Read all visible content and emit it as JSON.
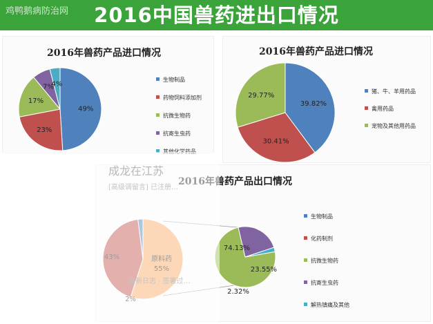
{
  "header": {
    "title": "2016中国兽药进出口情况",
    "watermark": "鸡鸭鹅病防治网"
  },
  "overlay": {
    "name": "成龙在江苏",
    "subtitle": "[高级调留言] 已注册…",
    "footer": "最新日志 · 签署过…"
  },
  "colors": {
    "blue": "#4f81bd",
    "red": "#c0504d",
    "green": "#9bbb59",
    "purple": "#8064a2",
    "teal": "#4bacc6",
    "orange": "#f9a962"
  },
  "chart_data": [
    {
      "type": "pie",
      "title": "2016年兽药产品进口情况",
      "categories": [
        "生物制品",
        "药物饲料添加剂",
        "抗微生物药",
        "抗寄生虫药",
        "其他化学药品"
      ],
      "values": [
        49,
        23,
        17,
        7,
        4
      ],
      "labels": [
        "49%",
        "23%",
        "17%",
        "7%",
        "4%"
      ]
    },
    {
      "type": "pie",
      "title": "2016年兽药产品进口情况",
      "categories": [
        "猪、牛、羊用药品",
        "禽用药品",
        "宠物及其他用药品"
      ],
      "values": [
        39.82,
        30.41,
        29.77
      ],
      "labels": [
        "39.82%",
        "30.41%",
        "29.77%"
      ]
    },
    {
      "type": "pie",
      "title": "2016年兽药产品出口情况",
      "categories": [
        "原料药",
        "化药制剂"
      ],
      "values": [
        55,
        43
      ],
      "labels": [
        "55%",
        "43%"
      ],
      "inner_label": "原料药",
      "other_label": "2%",
      "breakdown": {
        "categories": [
          "抗微生物药",
          "抗寄生虫药",
          "解热镇痛及其他"
        ],
        "values": [
          74.13,
          23.55,
          2.32
        ],
        "labels": [
          "74.13%",
          "23.55%",
          "2.32%"
        ]
      },
      "legend": [
        "生物制品",
        "化药制剂",
        "抗微生物药",
        "抗寄生虫药",
        "解热镇痛及其他"
      ]
    }
  ]
}
